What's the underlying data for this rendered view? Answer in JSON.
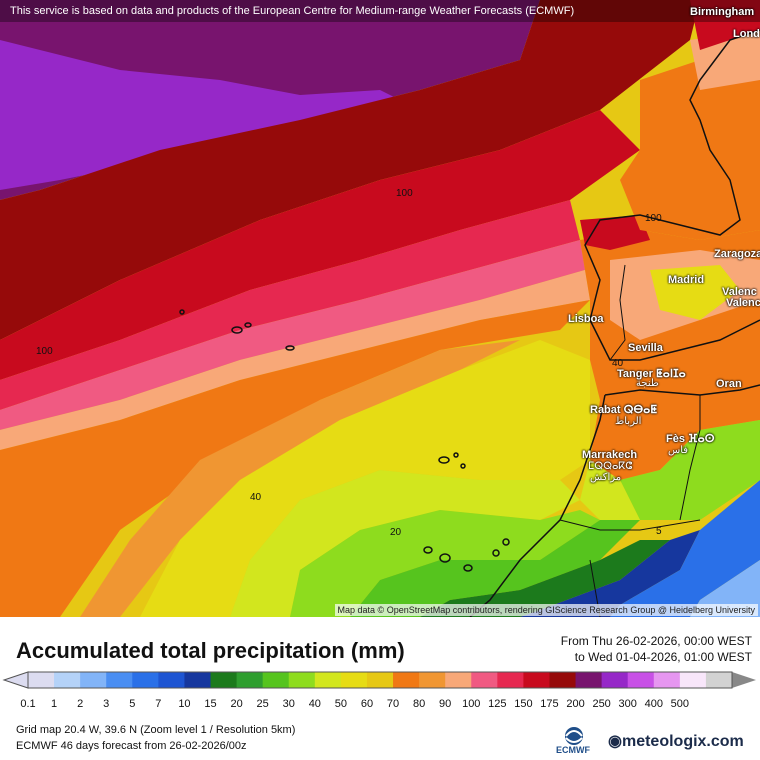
{
  "map": {
    "disclaimer": "This service is based on data and products of the European Centre for Medium-range Weather Forecasts (ECMWF)",
    "attribution": "Map data © OpenStreetMap contributors, rendering GIScience Research Group @ Heidelberg University",
    "cities": [
      {
        "name": "Birmingham"
      },
      {
        "name": "Lond"
      },
      {
        "name": "Zaragoza"
      },
      {
        "name": "Madrid"
      },
      {
        "name": "Valenc"
      },
      {
        "name": "Valenc"
      },
      {
        "name": "Lisboa"
      },
      {
        "name": "Sevilla"
      },
      {
        "name": "Tanger ⵟⴰⵏⵊⴰ"
      },
      {
        "name": "طنجة"
      },
      {
        "name": "Oran"
      },
      {
        "name": "Rabat ⵕⴱⴰⵟ"
      },
      {
        "name": "الرباط"
      },
      {
        "name": "Fès ⴼⴰⵙ"
      },
      {
        "name": "فاس"
      },
      {
        "name": "Marrakech"
      },
      {
        "name": "ⵎⵕⵕⴰⴽⵛ"
      },
      {
        "name": "مراكش"
      }
    ],
    "contour_labels": [
      "100",
      "100",
      "100",
      "40",
      "40",
      "20",
      "5"
    ]
  },
  "legend": {
    "title": "Accumulated total precipitation (mm)",
    "from": "From Thu 26-02-2026, 00:00 WEST",
    "to": "to Wed 01-04-2026, 01:00 WEST",
    "ticks": [
      "0.1",
      "1",
      "2",
      "3",
      "5",
      "7",
      "10",
      "15",
      "20",
      "25",
      "30",
      "40",
      "50",
      "60",
      "70",
      "80",
      "90",
      "100",
      "125",
      "150",
      "175",
      "200",
      "250",
      "300",
      "400",
      "500"
    ],
    "colors": [
      "#dcdcf0",
      "#b4d2f8",
      "#82b4f8",
      "#4a8ef2",
      "#2a70e8",
      "#1e55d2",
      "#16379e",
      "#1c7a1c",
      "#2f9e2f",
      "#56c41e",
      "#8edc1e",
      "#d2e61e",
      "#e6dc14",
      "#e6c814",
      "#f07814",
      "#f09632",
      "#f8a878",
      "#f05a82",
      "#e62850",
      "#c80a1e",
      "#960a0a",
      "#78146e",
      "#9628c8",
      "#c850e6",
      "#e696f0",
      "#f8e6fa",
      "#d2d2d2"
    ]
  },
  "footer": {
    "grid": "Grid map 20.4 W, 39.6 N (Zoom level 1 / Resolution 5km)",
    "forecast": "ECMWF 46 days forecast from  26-02-2026/00z",
    "ecmwf": "ECMWF",
    "brand": "meteologix.com"
  }
}
